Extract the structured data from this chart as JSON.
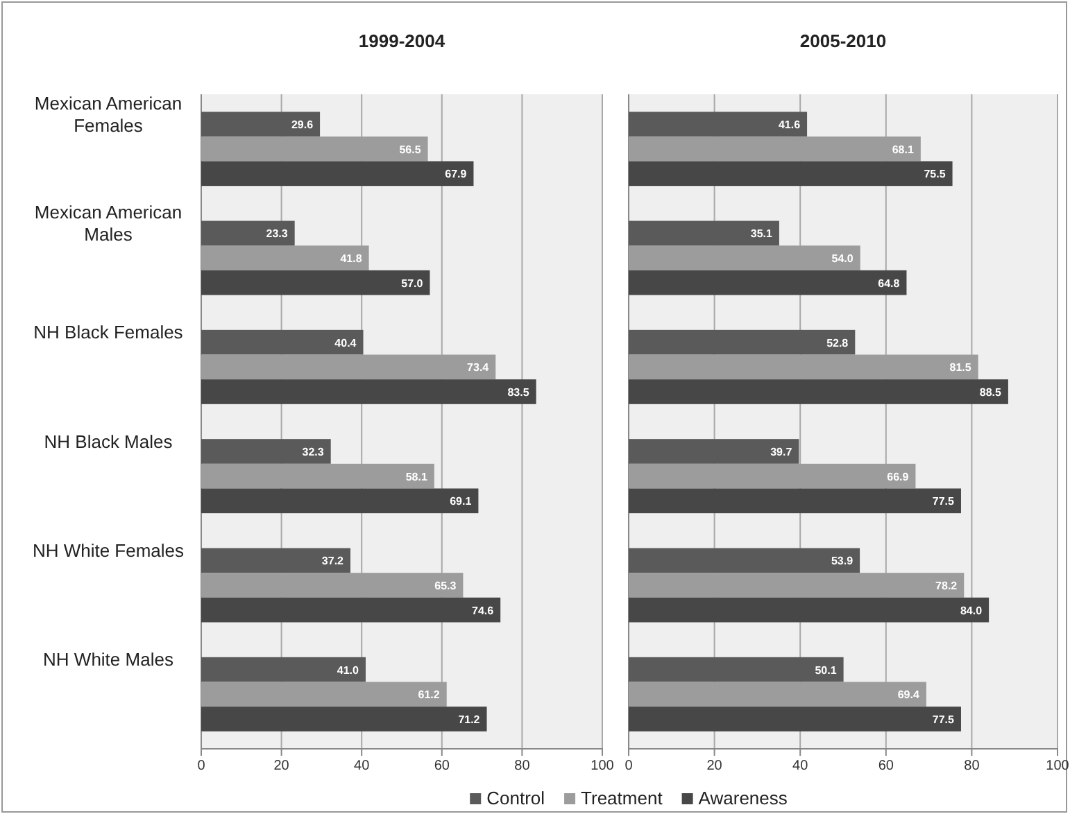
{
  "chart_data": [
    {
      "type": "bar",
      "orientation": "horizontal",
      "title": "1999-2004",
      "categories": [
        "Mexican American Females",
        "Mexican American Males",
        "NH Black Females",
        "NH Black Males",
        "NH White Females",
        "NH White Males"
      ],
      "series": [
        {
          "name": "Control",
          "color": "#5a5a5a",
          "values": [
            29.6,
            23.3,
            40.4,
            32.3,
            37.2,
            41.0
          ],
          "value_labels": [
            "29.6",
            "23.3",
            "40.4",
            "32.3",
            "37.2",
            "41.0"
          ]
        },
        {
          "name": "Treatment",
          "color": "#9c9c9c",
          "values": [
            56.5,
            41.8,
            73.4,
            58.1,
            65.3,
            61.2
          ],
          "value_labels": [
            "56.5",
            "41.8",
            "73.4",
            "58.1",
            "65.3",
            "61.2"
          ]
        },
        {
          "name": "Awareness",
          "color": "#474747",
          "values": [
            67.9,
            57.0,
            83.5,
            69.1,
            74.6,
            71.2
          ],
          "value_labels": [
            "67.9",
            "57.0",
            "83.5",
            "69.1",
            "74.6",
            "71.2"
          ]
        }
      ],
      "xlim": [
        0,
        100
      ],
      "xticks": [
        0,
        20,
        40,
        60,
        80,
        100
      ],
      "grid": "x",
      "legend": "bottom",
      "data_labels": true
    },
    {
      "type": "bar",
      "orientation": "horizontal",
      "title": "2005-2010",
      "categories": [
        null,
        null,
        null,
        null,
        null,
        null
      ],
      "series": [
        {
          "color": "#5a5a5a",
          "values": [
            41.6,
            35.1,
            52.8,
            39.7,
            53.9,
            50.1
          ],
          "value_labels": [
            "41.6",
            "35.1",
            "52.8",
            "39.7",
            "53.9",
            "50.1"
          ]
        },
        {
          "color": "#9c9c9c",
          "values": [
            68.1,
            54.0,
            81.5,
            66.9,
            78.2,
            69.4
          ],
          "value_labels": [
            "68.1",
            "54.0",
            "81.5",
            "66.9",
            "78.2",
            "69.4"
          ]
        },
        {
          "color": "#474747",
          "values": [
            75.5,
            64.8,
            88.5,
            77.5,
            84.0,
            77.5
          ],
          "value_labels": [
            "75.5",
            "64.8",
            "88.5",
            "77.5",
            "84.0",
            "77.5"
          ]
        }
      ],
      "xlim": [
        0,
        100
      ],
      "xticks": [
        0,
        20,
        40,
        60,
        80,
        100
      ],
      "grid": "x",
      "tick_labels": "x",
      "data_labels": true
    }
  ]
}
